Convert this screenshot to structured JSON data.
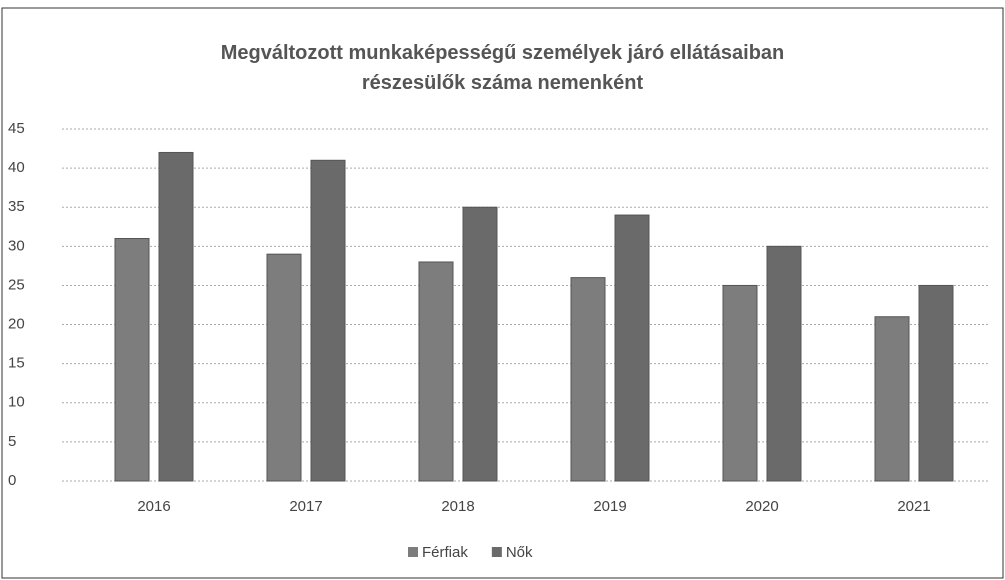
{
  "chart_data": {
    "type": "bar",
    "title": "Megváltozott munkaképességű személyek járó ellátásaiban részesülők száma nemenként",
    "categories": [
      "2016",
      "2017",
      "2018",
      "2019",
      "2020",
      "2021"
    ],
    "series": [
      {
        "name": "Férfiak",
        "color": "#7d7d7d",
        "values": [
          31,
          29,
          28,
          26,
          25,
          21
        ]
      },
      {
        "name": "Nők",
        "color": "#6a6a6a",
        "values": [
          42,
          41,
          35,
          34,
          30,
          25
        ]
      }
    ],
    "ylim": [
      0,
      45
    ],
    "yticks": [
      0,
      5,
      10,
      15,
      20,
      25,
      30,
      35,
      40,
      45
    ],
    "grid": true,
    "legend": "bottom"
  }
}
